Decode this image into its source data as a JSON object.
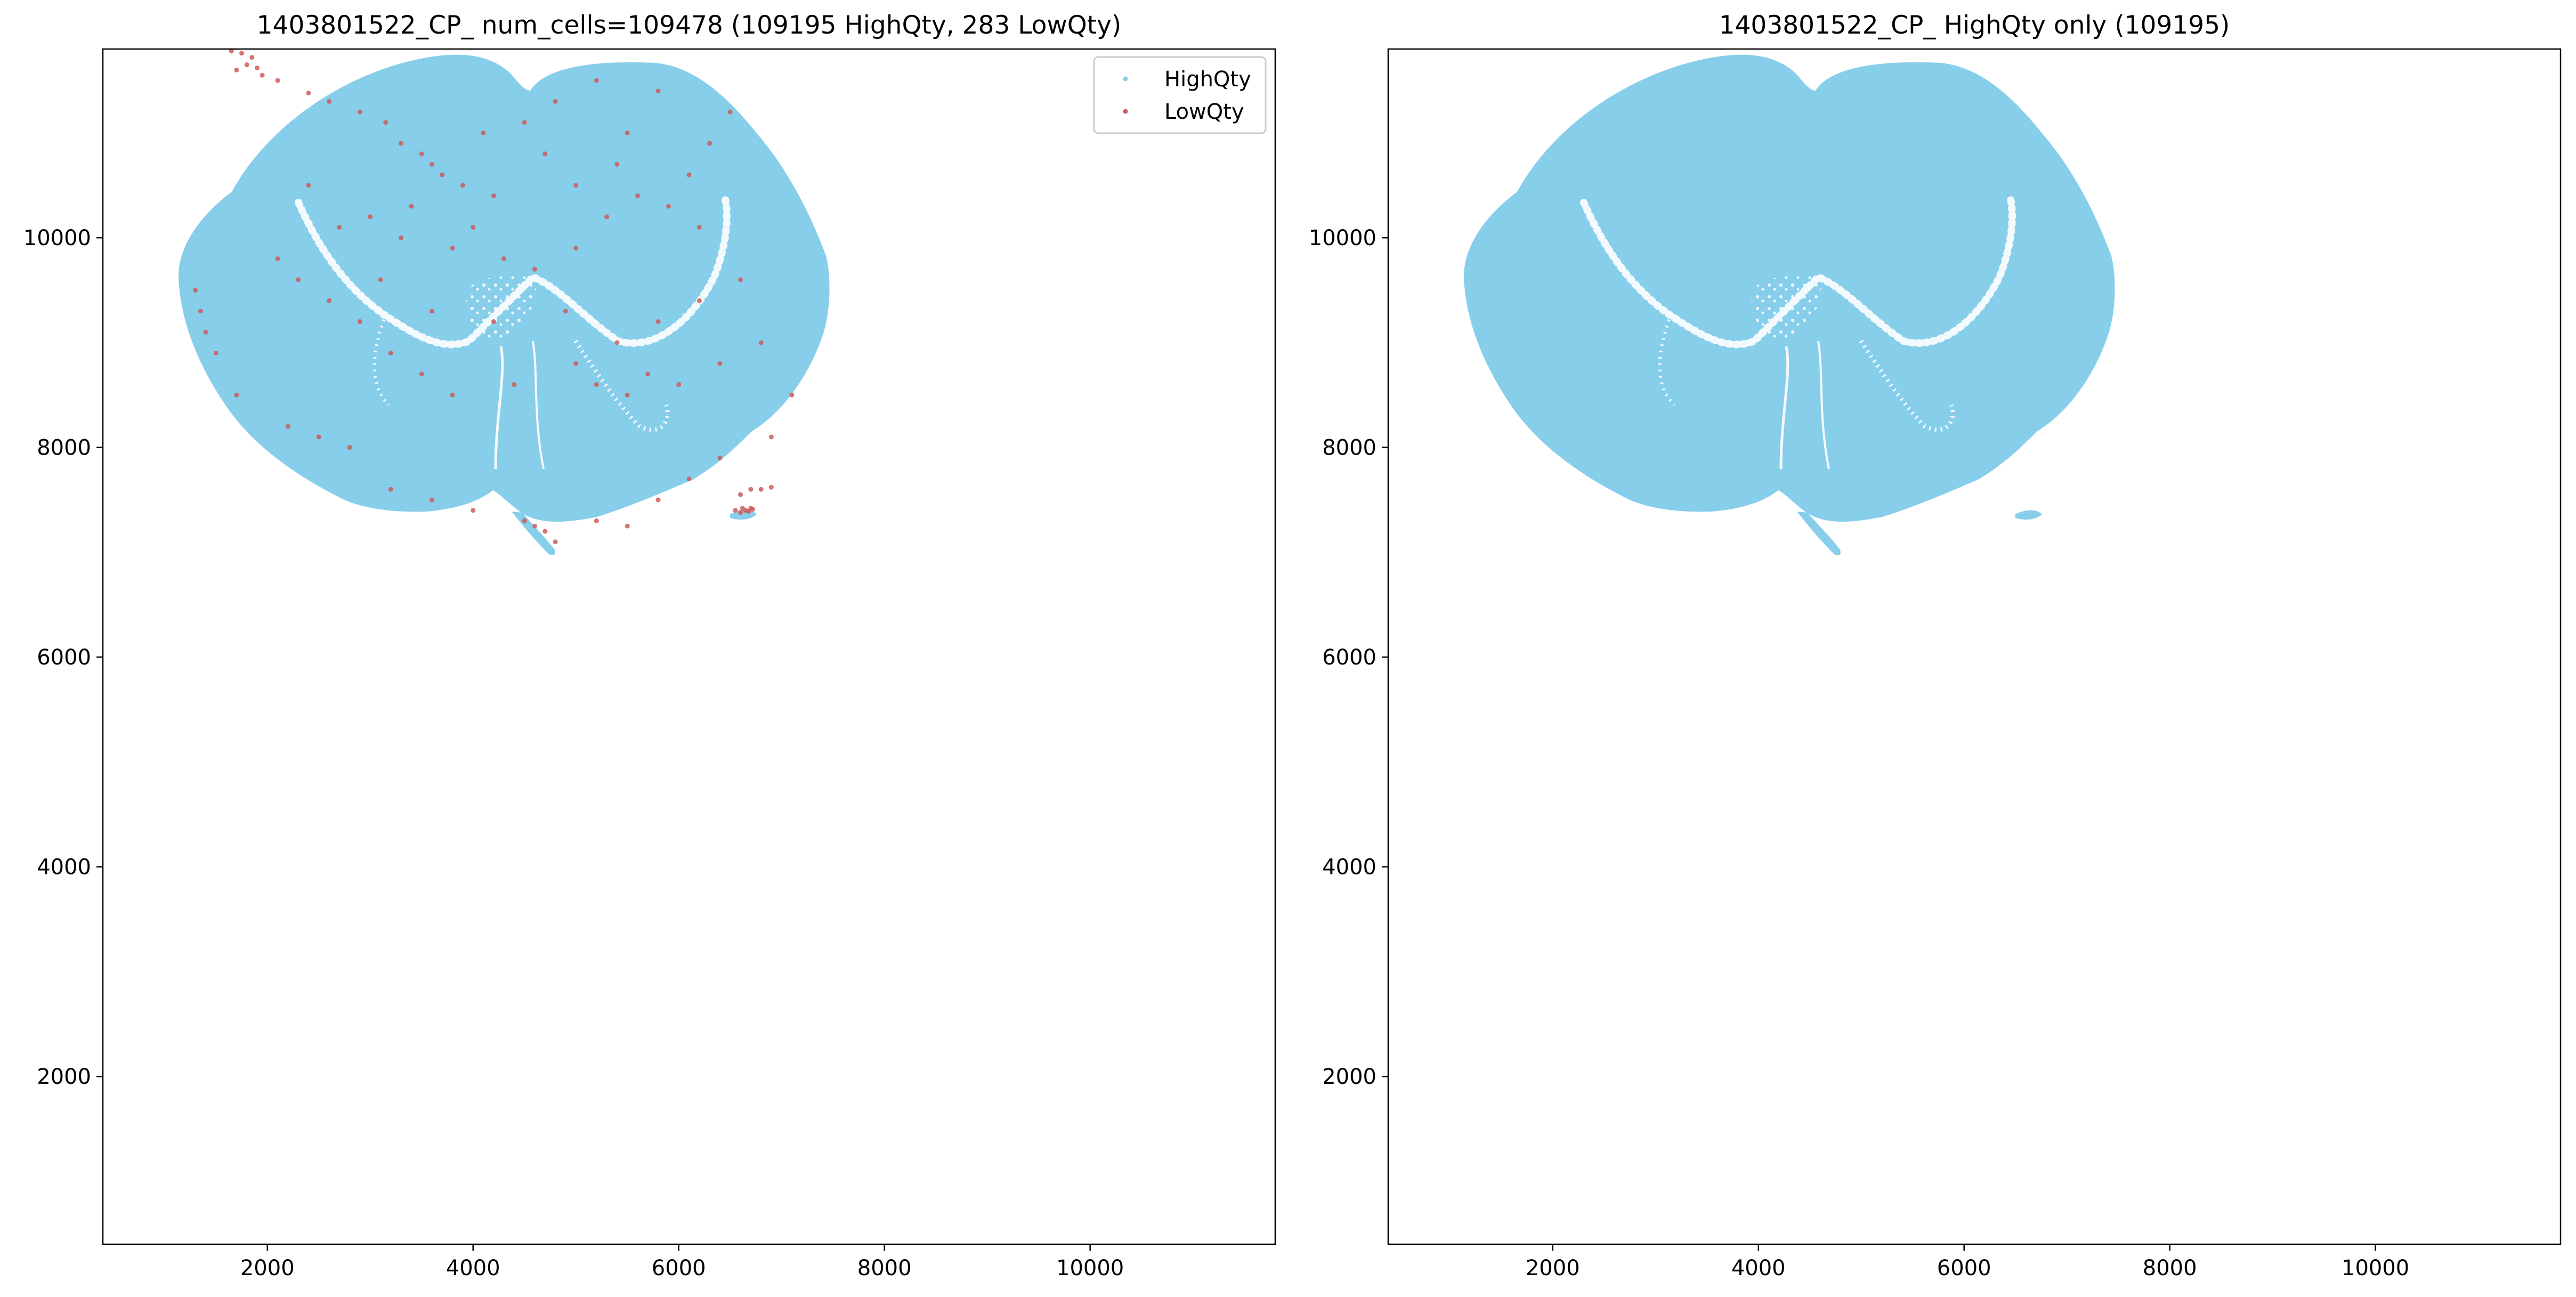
{
  "colors": {
    "high": "#87CEEB",
    "low": "#CD5C5C",
    "axis": "#000000",
    "legend_border": "#cccccc"
  },
  "chart_data": [
    {
      "type": "scatter",
      "title": "1403801522_CP_ num_cells=109478 (109195 HighQty, 283 LowQty)",
      "xlim": [
        400,
        11800
      ],
      "ylim": [
        400,
        11800
      ],
      "xticks": [
        "2000",
        "4000",
        "6000",
        "8000",
        "10000"
      ],
      "yticks": [
        "2000",
        "4000",
        "6000",
        "8000",
        "10000"
      ],
      "xtick_values": [
        2000,
        4000,
        6000,
        8000,
        10000
      ],
      "ytick_values": [
        2000,
        4000,
        6000,
        8000,
        10000
      ],
      "grid": false,
      "legend": {
        "placement": "top-right",
        "entries": [
          {
            "label": "HighQty",
            "color": "#87CEEB"
          },
          {
            "label": "LowQty",
            "color": "#CD5C5C"
          }
        ]
      },
      "series": [
        {
          "name": "HighQty",
          "color": "#87CEEB",
          "count": 109195
        },
        {
          "name": "LowQty",
          "color": "#CD5C5C",
          "count": 283,
          "points": [
            [
              1650,
              11780
            ],
            [
              1750,
              11760
            ],
            [
              1850,
              11720
            ],
            [
              1800,
              11650
            ],
            [
              1700,
              11600
            ],
            [
              1900,
              11620
            ],
            [
              1950,
              11550
            ],
            [
              2100,
              11500
            ],
            [
              2400,
              11380
            ],
            [
              2600,
              11300
            ],
            [
              2900,
              11200
            ],
            [
              3150,
              11100
            ],
            [
              3300,
              10900
            ],
            [
              3500,
              10800
            ],
            [
              3600,
              10700
            ],
            [
              3700,
              10600
            ],
            [
              3900,
              10500
            ],
            [
              4200,
              10400
            ],
            [
              3400,
              10300
            ],
            [
              3000,
              10200
            ],
            [
              2700,
              10100
            ],
            [
              3800,
              9900
            ],
            [
              4300,
              9800
            ],
            [
              4600,
              9700
            ],
            [
              5000,
              9900
            ],
            [
              5300,
              10200
            ],
            [
              5600,
              10400
            ],
            [
              5900,
              10300
            ],
            [
              6100,
              10600
            ],
            [
              6300,
              10900
            ],
            [
              6500,
              11200
            ],
            [
              5800,
              11400
            ],
            [
              5200,
              11500
            ],
            [
              4800,
              11300
            ],
            [
              4500,
              11100
            ],
            [
              4100,
              11000
            ],
            [
              4700,
              10800
            ],
            [
              5400,
              10700
            ],
            [
              6200,
              10100
            ],
            [
              6600,
              9600
            ],
            [
              6800,
              9000
            ],
            [
              6400,
              8800
            ],
            [
              6000,
              8600
            ],
            [
              5700,
              8700
            ],
            [
              5500,
              8500
            ],
            [
              5200,
              8600
            ],
            [
              5000,
              8800
            ],
            [
              4400,
              8600
            ],
            [
              3800,
              8500
            ],
            [
              3500,
              8700
            ],
            [
              3200,
              8900
            ],
            [
              2900,
              9200
            ],
            [
              2600,
              9400
            ],
            [
              2300,
              9600
            ],
            [
              2100,
              9800
            ],
            [
              1300,
              9500
            ],
            [
              1350,
              9300
            ],
            [
              1400,
              9100
            ],
            [
              1500,
              8900
            ],
            [
              1700,
              8500
            ],
            [
              2200,
              8200
            ],
            [
              2500,
              8100
            ],
            [
              2800,
              8000
            ],
            [
              3200,
              7600
            ],
            [
              3600,
              7500
            ],
            [
              4000,
              7400
            ],
            [
              4500,
              7300
            ],
            [
              4600,
              7250
            ],
            [
              4700,
              7200
            ],
            [
              4800,
              7100
            ],
            [
              5200,
              7300
            ],
            [
              5500,
              7250
            ],
            [
              5800,
              7500
            ],
            [
              6100,
              7700
            ],
            [
              6400,
              7900
            ],
            [
              6550,
              7400
            ],
            [
              6600,
              7380
            ],
            [
              6650,
              7400
            ],
            [
              6700,
              7420
            ],
            [
              6600,
              7550
            ],
            [
              6700,
              7600
            ],
            [
              6800,
              7600
            ],
            [
              6900,
              7620
            ],
            [
              6620,
              7420
            ],
            [
              6680,
              7390
            ],
            [
              6720,
              7410
            ],
            [
              7100,
              8500
            ],
            [
              6900,
              8100
            ],
            [
              5400,
              9000
            ],
            [
              5800,
              9200
            ],
            [
              6200,
              9400
            ],
            [
              4900,
              9300
            ],
            [
              4200,
              9200
            ],
            [
              3600,
              9300
            ],
            [
              3100,
              9600
            ],
            [
              5000,
              10500
            ],
            [
              5500,
              11000
            ],
            [
              4000,
              10100
            ],
            [
              3300,
              10000
            ],
            [
              2400,
              10500
            ]
          ]
        }
      ]
    },
    {
      "type": "scatter",
      "title": "1403801522_CP_ HighQty only (109195)",
      "xlim": [
        400,
        11800
      ],
      "ylim": [
        400,
        11800
      ],
      "xticks": [
        "2000",
        "4000",
        "6000",
        "8000",
        "10000"
      ],
      "yticks": [
        "2000",
        "4000",
        "6000",
        "8000",
        "10000"
      ],
      "xtick_values": [
        2000,
        4000,
        6000,
        8000,
        10000
      ],
      "ytick_values": [
        2000,
        4000,
        6000,
        8000,
        10000
      ],
      "grid": false,
      "series": [
        {
          "name": "HighQty",
          "color": "#87CEEB",
          "count": 109195
        }
      ]
    }
  ]
}
